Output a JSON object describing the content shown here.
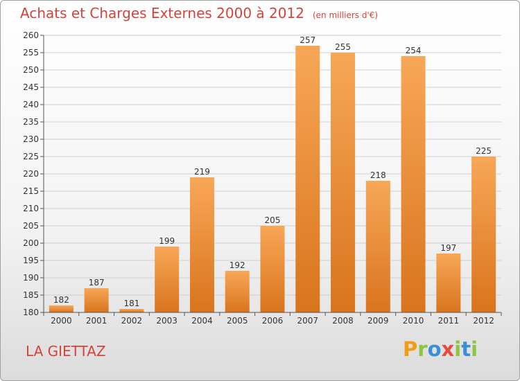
{
  "title": "Achats et Charges Externes 2000 à 2012",
  "unit_note": "(en milliers d'€)",
  "town": "LA GIETTAZ",
  "logo": {
    "text": "Proxiti",
    "letters": [
      "P",
      "r",
      "o",
      "x",
      "i",
      "t",
      "i"
    ],
    "colors": [
      "#f39c12",
      "#8cc63f",
      "#3a8fd6",
      "#e74c3c",
      "#8cc63f",
      "#3a8fd6",
      "#8cc63f"
    ]
  },
  "colors": {
    "bar_top": "#f7a757",
    "bar_bottom": "#d9741c",
    "grid": "#cfcfcf",
    "title": "#d5433a"
  },
  "chart_data": {
    "type": "bar",
    "categories": [
      "2000",
      "2001",
      "2002",
      "2003",
      "2004",
      "2005",
      "2006",
      "2007",
      "2008",
      "2009",
      "2010",
      "2011",
      "2012"
    ],
    "values": [
      182,
      187,
      181,
      199,
      219,
      192,
      205,
      257,
      255,
      218,
      254,
      197,
      225
    ],
    "ylim": [
      180,
      260
    ],
    "yticks": [
      180,
      185,
      190,
      195,
      200,
      205,
      210,
      215,
      220,
      225,
      230,
      235,
      240,
      245,
      250,
      255,
      260
    ],
    "grid": true,
    "data_labels": true
  }
}
